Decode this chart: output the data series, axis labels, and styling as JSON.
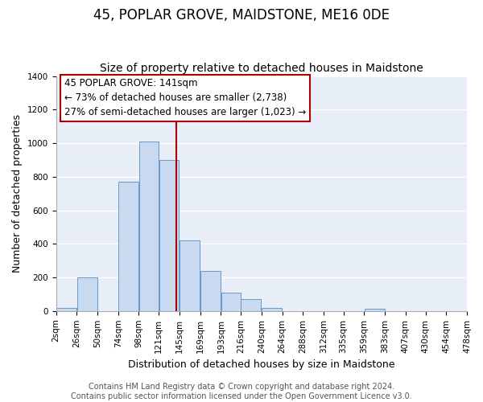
{
  "title": "45, POPLAR GROVE, MAIDSTONE, ME16 0DE",
  "subtitle": "Size of property relative to detached houses in Maidstone",
  "xlabel": "Distribution of detached houses by size in Maidstone",
  "ylabel": "Number of detached properties",
  "bin_edges": [
    2,
    26,
    50,
    74,
    98,
    121,
    145,
    169,
    193,
    216,
    240,
    264,
    288,
    312,
    335,
    359,
    383,
    407,
    430,
    454,
    478
  ],
  "bar_heights": [
    20,
    200,
    0,
    770,
    1010,
    900,
    420,
    240,
    110,
    70,
    20,
    0,
    0,
    0,
    0,
    15,
    0,
    0,
    0,
    0
  ],
  "bar_color": "#c8d9f0",
  "bar_edge_color": "#6699cc",
  "vline_x": 141,
  "vline_color": "#aa0000",
  "annotation_title": "45 POPLAR GROVE: 141sqm",
  "annotation_line1": "← 73% of detached houses are smaller (2,738)",
  "annotation_line2": "27% of semi-detached houses are larger (1,023) →",
  "annotation_box_color": "#ffffff",
  "annotation_box_edge": "#aa0000",
  "tick_labels": [
    "2sqm",
    "26sqm",
    "50sqm",
    "74sqm",
    "98sqm",
    "121sqm",
    "145sqm",
    "169sqm",
    "193sqm",
    "216sqm",
    "240sqm",
    "264sqm",
    "288sqm",
    "312sqm",
    "335sqm",
    "359sqm",
    "383sqm",
    "407sqm",
    "430sqm",
    "454sqm",
    "478sqm"
  ],
  "ylim": [
    0,
    1400
  ],
  "yticks": [
    0,
    200,
    400,
    600,
    800,
    1000,
    1200,
    1400
  ],
  "footer_line1": "Contains HM Land Registry data © Crown copyright and database right 2024.",
  "footer_line2": "Contains public sector information licensed under the Open Government Licence v3.0.",
  "plot_bg_color": "#e8eef8",
  "fig_bg_color": "#ffffff",
  "grid_color": "#ffffff",
  "title_fontsize": 12,
  "subtitle_fontsize": 10,
  "axis_label_fontsize": 9,
  "tick_fontsize": 7.5,
  "footer_fontsize": 7,
  "ann_fontsize": 8.5
}
